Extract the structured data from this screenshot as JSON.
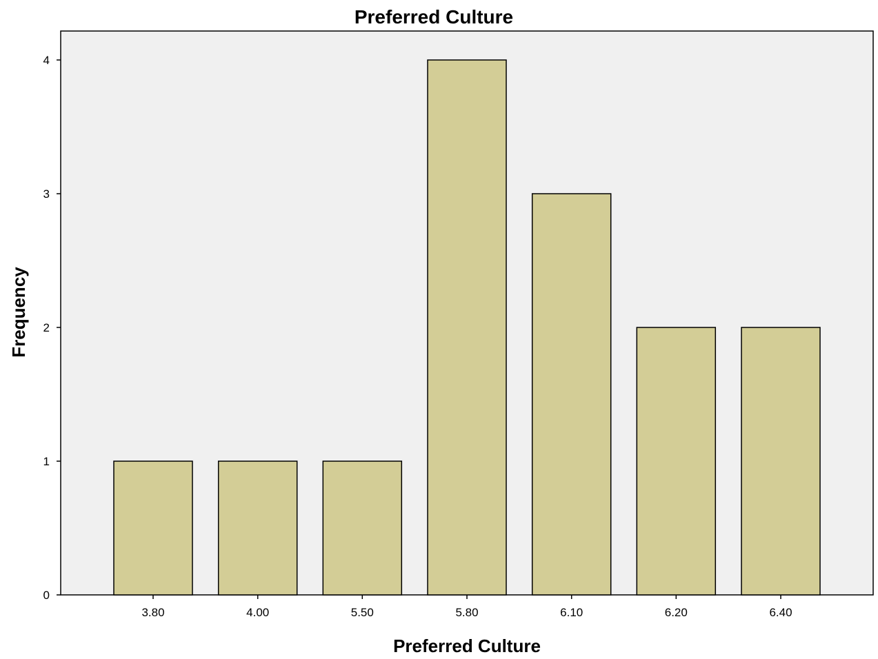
{
  "chart_data": {
    "type": "bar",
    "title": "Preferred Culture",
    "xlabel": "Preferred Culture",
    "ylabel": "Frequency",
    "categories": [
      "3.80",
      "4.00",
      "5.50",
      "5.80",
      "6.10",
      "6.20",
      "6.40"
    ],
    "values": [
      1,
      1,
      1,
      4,
      3,
      2,
      2
    ],
    "ylim": [
      0,
      4.2
    ],
    "yticks": [
      "0",
      "1",
      "2",
      "3",
      "4"
    ],
    "grid": false,
    "legend": "none"
  },
  "colors": {
    "bar_fill": "#d3cd96",
    "bar_stroke": "#000000",
    "plot_background": "#f0f0f0",
    "axis": "#000000"
  }
}
